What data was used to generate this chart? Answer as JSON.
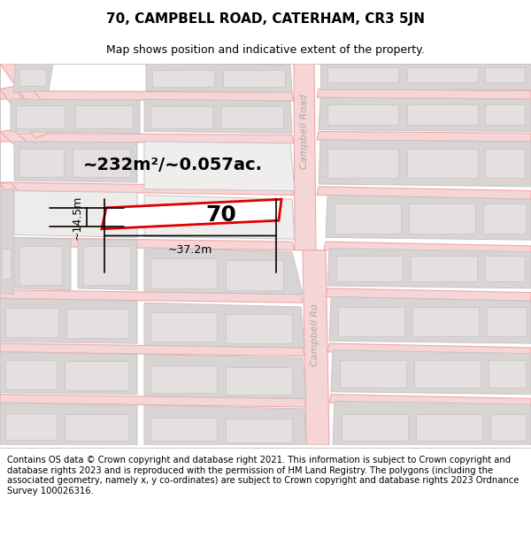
{
  "title": "70, CAMPBELL ROAD, CATERHAM, CR3 5JN",
  "subtitle": "Map shows position and indicative extent of the property.",
  "footer": "Contains OS data © Crown copyright and database right 2021. This information is subject to Crown copyright and database rights 2023 and is reproduced with the permission of HM Land Registry. The polygons (including the associated geometry, namely x, y co-ordinates) are subject to Crown copyright and database rights 2023 Ordnance Survey 100026316.",
  "area_text": "~232m²/~0.057ac.",
  "width_text": "~37.2m",
  "height_text": "~14.5m",
  "number_text": "70",
  "road_label_upper": "Campbell Road",
  "road_label_lower": "Campbell Ro",
  "map_bg": "#ffffff",
  "road_line_color": "#f0a8a8",
  "road_fill_color": "#f5d5d5",
  "block_fill": "#d8d4d4",
  "block_edge": "#c8c4c4",
  "inner_block_fill": "#e4e0e0",
  "property_edge": "#dd0000",
  "property_fill": "#ffffff",
  "title_fontsize": 11,
  "subtitle_fontsize": 9,
  "footer_fontsize": 7.2,
  "area_fontsize": 14,
  "number_fontsize": 18,
  "meas_fontsize": 9,
  "road_label_fontsize": 8,
  "road_label_color": "#aaaaaa"
}
